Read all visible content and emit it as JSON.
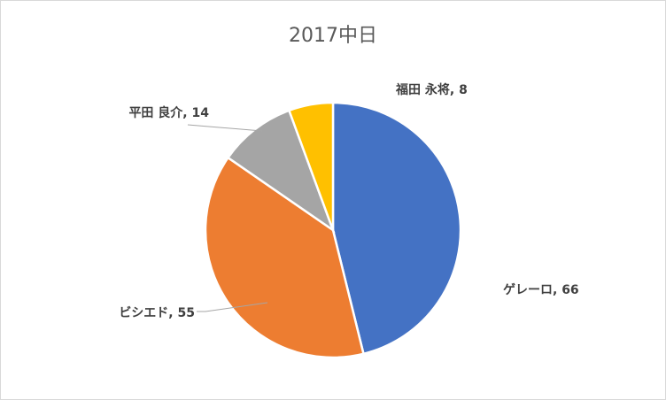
{
  "chart_data": {
    "type": "pie",
    "title": "2017中日",
    "slices": [
      {
        "label": "ゲレーロ",
        "value": 66,
        "color": "#4472c4"
      },
      {
        "label": "ビシエド",
        "value": 55,
        "color": "#ed7d31"
      },
      {
        "label": "平田 良介",
        "value": 14,
        "color": "#a5a5a5"
      },
      {
        "label": "福田 永将",
        "value": 8,
        "color": "#ffc000"
      }
    ],
    "data_labels": [
      "ゲレーロ, 66",
      "ビシエド, 55",
      "平田 良介, 14",
      "福田 永将, 8"
    ],
    "start_angle_deg": 0,
    "direction": "clockwise",
    "legend": "none"
  }
}
